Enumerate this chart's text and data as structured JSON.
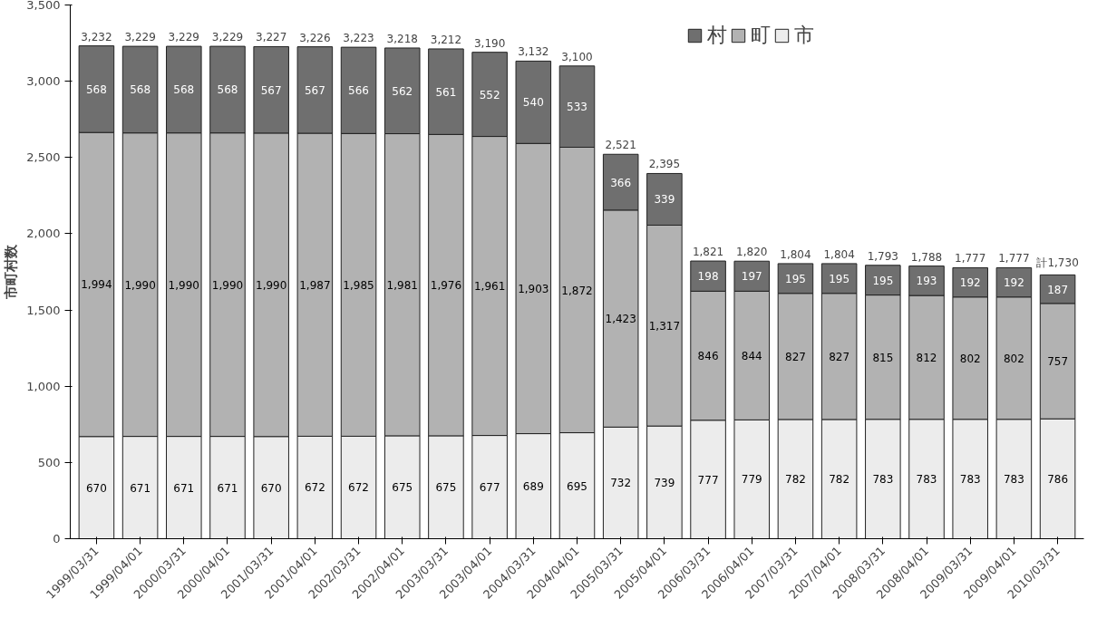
{
  "chart_data": {
    "type": "bar",
    "stacked": true,
    "ylabel": "市町村数",
    "categories": [
      "1999/03/31",
      "1999/04/01",
      "2000/03/31",
      "2000/04/01",
      "2001/03/31",
      "2001/04/01",
      "2002/03/31",
      "2002/04/01",
      "2003/03/31",
      "2003/04/01",
      "2004/03/31",
      "2004/04/01",
      "2005/03/31",
      "2005/04/01",
      "2006/03/31",
      "2006/04/01",
      "2007/03/31",
      "2007/04/01",
      "2008/03/31",
      "2008/04/01",
      "2009/03/31",
      "2009/04/01",
      "2010/03/31"
    ],
    "series": [
      {
        "name": "市",
        "color": "#ececec",
        "values": [
          670,
          671,
          671,
          671,
          670,
          672,
          672,
          675,
          675,
          677,
          689,
          695,
          732,
          739,
          777,
          779,
          782,
          782,
          783,
          783,
          783,
          783,
          786
        ]
      },
      {
        "name": "町",
        "color": "#b2b2b2",
        "values": [
          1994,
          1990,
          1990,
          1990,
          1990,
          1987,
          1985,
          1981,
          1976,
          1961,
          1903,
          1872,
          1423,
          1317,
          846,
          844,
          827,
          827,
          815,
          812,
          802,
          802,
          757
        ],
        "value_labels": [
          "1,994",
          "1,990",
          "1,990",
          "1,990",
          "1,990",
          "1,987",
          "1,985",
          "1,981",
          "1,976",
          "1,961",
          "1,903",
          "1,872",
          "1,423",
          "1,317",
          "846",
          "844",
          "827",
          "827",
          "815",
          "812",
          "802",
          "802",
          "757"
        ]
      },
      {
        "name": "村",
        "color": "#6f6f6f",
        "values": [
          568,
          568,
          568,
          568,
          567,
          567,
          566,
          562,
          561,
          552,
          540,
          533,
          366,
          339,
          198,
          197,
          195,
          195,
          195,
          193,
          192,
          192,
          187
        ]
      }
    ],
    "totals": [
      "3,232",
      "3,229",
      "3,229",
      "3,229",
      "3,227",
      "3,226",
      "3,223",
      "3,218",
      "3,212",
      "3,190",
      "3,132",
      "3,100",
      "2,521",
      "2,395",
      "1,821",
      "1,820",
      "1,804",
      "1,804",
      "1,793",
      "1,788",
      "1,777",
      "1,777",
      "計1,730"
    ],
    "data_labels": true,
    "ylim": [
      0,
      3500
    ],
    "yticks": [
      0,
      500,
      {
        "value": 1000,
        "label": "1,000"
      },
      {
        "value": 1500,
        "label": "1,500"
      },
      {
        "value": 2000,
        "label": "2,000"
      },
      {
        "value": 2500,
        "label": "2,500"
      },
      {
        "value": 3000,
        "label": "3,000"
      },
      {
        "value": 3500,
        "label": "3,500"
      }
    ],
    "grid": false,
    "legend": "top right"
  }
}
